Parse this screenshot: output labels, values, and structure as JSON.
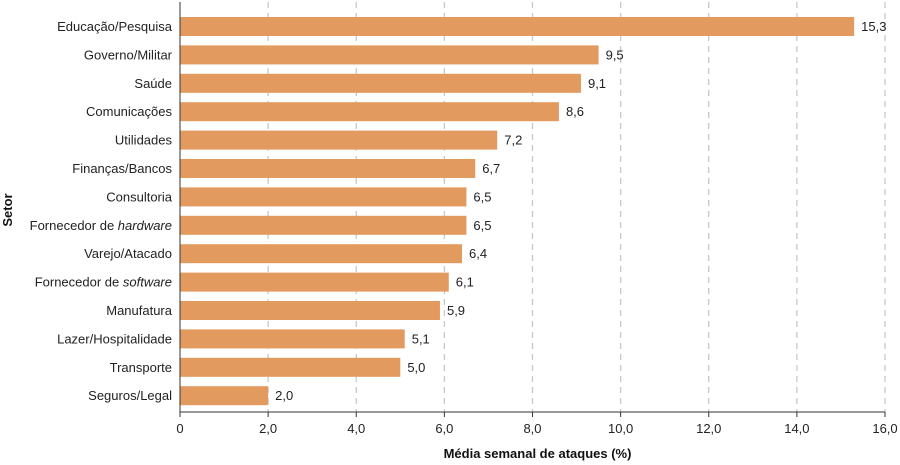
{
  "chart_data": {
    "type": "bar",
    "orientation": "horizontal",
    "categories": [
      "Educação/Pesquisa",
      "Governo/Militar",
      "Saúde",
      "Comunicações",
      "Utilidades",
      "Finanças/Bancos",
      "Consultoria",
      "Fornecedor de hardware",
      "Varejo/Atacado",
      "Fornecedor de software",
      "Manufatura",
      "Lazer/Hospitalidade",
      "Transporte",
      "Seguros/Legal"
    ],
    "category_parts": [
      {
        "text": "Educação/Pesquisa",
        "italic": ""
      },
      {
        "text": "Governo/Militar",
        "italic": ""
      },
      {
        "text": "Saúde",
        "italic": ""
      },
      {
        "text": "Comunicações",
        "italic": ""
      },
      {
        "text": "Utilidades",
        "italic": ""
      },
      {
        "text": "Finanças/Bancos",
        "italic": ""
      },
      {
        "text": "Consultoria",
        "italic": ""
      },
      {
        "text": "Fornecedor de ",
        "italic": "hardware"
      },
      {
        "text": "Varejo/Atacado",
        "italic": ""
      },
      {
        "text": "Fornecedor de ",
        "italic": "software"
      },
      {
        "text": "Manufatura",
        "italic": ""
      },
      {
        "text": "Lazer/Hospitalidade",
        "italic": ""
      },
      {
        "text": "Transporte",
        "italic": ""
      },
      {
        "text": "Seguros/Legal",
        "italic": ""
      }
    ],
    "values": [
      15.3,
      9.5,
      9.1,
      8.6,
      7.2,
      6.7,
      6.5,
      6.5,
      6.4,
      6.1,
      5.9,
      5.1,
      5.0,
      2.0
    ],
    "value_labels": [
      "15,3",
      "9,5",
      "9,1",
      "8,6",
      "7,2",
      "6,7",
      "6,5",
      "6,5",
      "6,4",
      "6,1",
      "5,9",
      "5,1",
      "5,0",
      "2,0"
    ],
    "xticks": [
      0,
      2,
      4,
      6,
      8,
      10,
      12,
      14,
      16
    ],
    "xtick_labels": [
      "0",
      "2,0",
      "4,0",
      "6,0",
      "8,0",
      "10,0",
      "12,0",
      "14,0",
      "16,0"
    ],
    "xlim": [
      0,
      16
    ],
    "xlabel": "Média semanal de ataques (%)",
    "ylabel": "Setor",
    "title": "",
    "grid": "vertical dashed",
    "bar_color": "#e39a5f",
    "grid_color": "#c8c8c8"
  }
}
